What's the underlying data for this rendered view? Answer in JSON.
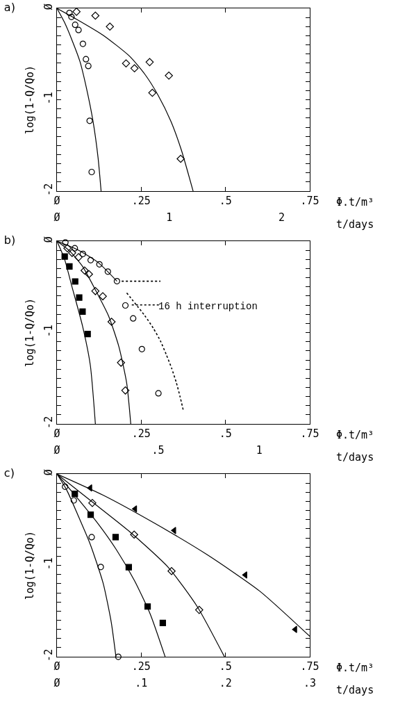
{
  "chart_data": [
    {
      "type": "scatter",
      "title": "a)",
      "xlabel": "Φ.t/m³",
      "x2label": "t/days",
      "ylabel": "log(1-Q/Qo)",
      "xlim": [
        0,
        0.75
      ],
      "xticks": [
        {
          "value": 0,
          "label": "Ø"
        },
        {
          "value": 0.25,
          "label": ".25"
        },
        {
          "value": 0.5,
          "label": ".5"
        },
        {
          "value": 0.75,
          "label": ".75"
        }
      ],
      "x2lim": [
        0,
        2.25
      ],
      "x2ticks": [
        {
          "value": 0,
          "label": "Ø"
        },
        {
          "value": 1,
          "label": "1"
        },
        {
          "value": 2,
          "label": "2"
        }
      ],
      "ylim": [
        -2,
        0
      ],
      "yticks": [
        {
          "value": 0,
          "label": "Ø"
        },
        {
          "value": -0.1,
          "label": null
        },
        {
          "value": -0.2,
          "label": null
        },
        {
          "value": -0.3,
          "label": null
        },
        {
          "value": -0.4,
          "label": null
        },
        {
          "value": -0.5,
          "label": null
        },
        {
          "value": -0.6,
          "label": null
        },
        {
          "value": -0.7,
          "label": null
        },
        {
          "value": -0.8,
          "label": null
        },
        {
          "value": -0.9,
          "label": null
        },
        {
          "value": -1,
          "label": "-1"
        },
        {
          "value": -1.1,
          "label": null
        },
        {
          "value": -1.2,
          "label": null
        },
        {
          "value": -1.3,
          "label": null
        },
        {
          "value": -1.4,
          "label": null
        },
        {
          "value": -1.5,
          "label": null
        },
        {
          "value": -1.6,
          "label": null
        },
        {
          "value": -1.7,
          "label": null
        },
        {
          "value": -1.8,
          "label": null
        },
        {
          "value": -1.9,
          "label": null
        },
        {
          "value": -2,
          "label": "-2"
        }
      ],
      "series": [
        {
          "type": "scatter",
          "marker": "circle",
          "color": "#000000",
          "x": [
            0.037,
            0.043,
            0.054,
            0.064,
            0.077,
            0.086,
            0.093,
            0.097,
            0.103
          ],
          "values": [
            -0.05,
            -0.094,
            -0.18,
            -0.237,
            -0.388,
            -0.556,
            -0.63,
            -1.23,
            -1.79
          ]
        },
        {
          "type": "scatter",
          "marker": "diamond",
          "color": "#000000",
          "x": [
            0.058,
            0.114,
            0.157,
            0.205,
            0.275,
            0.23,
            0.332,
            0.283,
            0.367
          ],
          "values": [
            -0.037,
            -0.08,
            -0.2,
            -0.602,
            -0.588,
            -0.656,
            -0.736,
            -0.924,
            -1.646
          ]
        },
        {
          "type": "line",
          "line_style": "solid",
          "color": "#000000",
          "x": [
            0,
            0.022,
            0.045,
            0.068,
            0.087,
            0.107,
            0.122,
            0.131
          ],
          "values": [
            0,
            -0.151,
            -0.351,
            -0.579,
            -0.864,
            -1.235,
            -1.635,
            -2
          ]
        },
        {
          "type": "line",
          "line_style": "solid",
          "color": "#000000",
          "x": [
            0,
            0.06,
            0.137,
            0.215,
            0.261,
            0.3,
            0.338,
            0.369,
            0.404
          ],
          "values": [
            0,
            -0.123,
            -0.294,
            -0.522,
            -0.722,
            -0.95,
            -1.235,
            -1.549,
            -2
          ]
        }
      ]
    },
    {
      "type": "scatter",
      "title": "b)",
      "xlabel": "Φ.t/m³",
      "x2label": "t/days",
      "ylabel": "log(1-Q/Qo)",
      "xlim": [
        0,
        0.75
      ],
      "xticks": [
        {
          "value": 0,
          "label": "Ø"
        },
        {
          "value": 0.25,
          "label": ".25"
        },
        {
          "value": 0.5,
          "label": ".5"
        },
        {
          "value": 0.75,
          "label": ".75"
        }
      ],
      "x2lim": [
        0,
        1.25
      ],
      "x2ticks": [
        {
          "value": 0,
          "label": "Ø"
        },
        {
          "value": 0.5,
          "label": ".5"
        },
        {
          "value": 1,
          "label": "1"
        }
      ],
      "ylim": [
        -2,
        0
      ],
      "yticks": [
        {
          "value": 0,
          "label": "Ø"
        },
        {
          "value": -0.1,
          "label": null
        },
        {
          "value": -0.2,
          "label": null
        },
        {
          "value": -0.3,
          "label": null
        },
        {
          "value": -0.4,
          "label": null
        },
        {
          "value": -0.5,
          "label": null
        },
        {
          "value": -0.6,
          "label": null
        },
        {
          "value": -0.7,
          "label": null
        },
        {
          "value": -0.8,
          "label": null
        },
        {
          "value": -0.9,
          "label": null
        },
        {
          "value": -1,
          "label": "-1"
        },
        {
          "value": -1.1,
          "label": null
        },
        {
          "value": -1.2,
          "label": null
        },
        {
          "value": -1.3,
          "label": null
        },
        {
          "value": -1.4,
          "label": null
        },
        {
          "value": -1.5,
          "label": null
        },
        {
          "value": -1.6,
          "label": null
        },
        {
          "value": -1.7,
          "label": null
        },
        {
          "value": -1.8,
          "label": null
        },
        {
          "value": -1.9,
          "label": null
        },
        {
          "value": -2,
          "label": "-2"
        }
      ],
      "annotations": [
        "16 h interruption"
      ],
      "series": [
        {
          "type": "scatter",
          "marker": "circle",
          "color": "#000000",
          "x": [
            0.025,
            0.053,
            0.077,
            0.1,
            0.126,
            0.151,
            0.178,
            0.203,
            0.226,
            0.252,
            0.301
          ],
          "values": [
            -0.014,
            -0.077,
            -0.139,
            -0.208,
            -0.253,
            -0.333,
            -0.438,
            -0.703,
            -0.845,
            -1.181,
            -1.664
          ]
        },
        {
          "type": "scatter",
          "marker": "diamond",
          "color": "#000000",
          "x": [
            0.031,
            0.045,
            0.064,
            0.082,
            0.095,
            0.114,
            0.136,
            0.162,
            0.19,
            0.203
          ],
          "values": [
            -0.077,
            -0.128,
            -0.176,
            -0.321,
            -0.361,
            -0.546,
            -0.603,
            -0.882,
            -1.329,
            -1.633
          ]
        },
        {
          "type": "scatter",
          "marker": "square",
          "color": "#000000",
          "x": [
            0.023,
            0.037,
            0.054,
            0.066,
            0.076,
            0.091
          ],
          "values": [
            -0.168,
            -0.276,
            -0.441,
            -0.617,
            -0.771,
            -1.015
          ]
        },
        {
          "type": "line",
          "line_style": "solid",
          "color": "#000000",
          "x": [
            0,
            0.06,
            0.122,
            0.178
          ],
          "values": [
            0,
            -0.091,
            -0.233,
            -0.438
          ]
        },
        {
          "type": "line",
          "line_style": "solid",
          "color": "#000000",
          "x": [
            0,
            0.037,
            0.076,
            0.114,
            0.153,
            0.184,
            0.207,
            0.219
          ],
          "values": [
            0,
            -0.105,
            -0.276,
            -0.532,
            -0.817,
            -1.158,
            -1.556,
            -2
          ]
        },
        {
          "type": "line",
          "line_style": "solid",
          "color": "#000000",
          "x": [
            0,
            0.022,
            0.045,
            0.076,
            0.099,
            0.114
          ],
          "values": [
            0,
            -0.191,
            -0.504,
            -0.93,
            -1.357,
            -2
          ]
        },
        {
          "type": "line",
          "line_style": "dotted",
          "color": "#000000",
          "x": [
            0.207,
            0.261,
            0.286,
            0.307,
            0.324,
            0.34,
            0.354,
            0.365,
            0.375
          ],
          "values": [
            -0.566,
            -0.817,
            -0.953,
            -1.092,
            -1.238,
            -1.388,
            -1.545,
            -1.698,
            -1.852
          ]
        },
        {
          "type": "line",
          "line_style": "dotted",
          "color": "#000000",
          "x": [
            0.192,
            0.307
          ],
          "values": [
            -0.438,
            -0.438
          ]
        },
        {
          "type": "line",
          "line_style": "dotted",
          "color": "#000000",
          "x": [
            0.222,
            0.307
          ],
          "values": [
            -0.697,
            -0.697
          ]
        }
      ]
    },
    {
      "type": "scatter",
      "title": "c)",
      "xlabel": "Φ.t/m³",
      "x2label": "t/days",
      "ylabel": "log(1-Q/Qo)",
      "xlim": [
        0,
        0.75
      ],
      "xticks": [
        {
          "value": 0,
          "label": "Ø"
        },
        {
          "value": 0.25,
          "label": ".25"
        },
        {
          "value": 0.5,
          "label": ".5"
        },
        {
          "value": 0.75,
          "label": ".75"
        }
      ],
      "x2lim": [
        0,
        0.3
      ],
      "x2ticks": [
        {
          "value": 0,
          "label": "Ø"
        },
        {
          "value": 0.1,
          "label": ".1"
        },
        {
          "value": 0.2,
          "label": ".2"
        },
        {
          "value": 0.3,
          "label": ".3"
        }
      ],
      "ylim": [
        -2,
        0
      ],
      "yticks": [
        {
          "value": 0,
          "label": "Ø"
        },
        {
          "value": -0.1,
          "label": null
        },
        {
          "value": -0.2,
          "label": null
        },
        {
          "value": -0.3,
          "label": null
        },
        {
          "value": -0.4,
          "label": null
        },
        {
          "value": -0.5,
          "label": null
        },
        {
          "value": -0.6,
          "label": null
        },
        {
          "value": -0.7,
          "label": null
        },
        {
          "value": -0.8,
          "label": null
        },
        {
          "value": -0.9,
          "label": null
        },
        {
          "value": -1,
          "label": "-1"
        },
        {
          "value": -1.1,
          "label": null
        },
        {
          "value": -1.2,
          "label": null
        },
        {
          "value": -1.3,
          "label": null
        },
        {
          "value": -1.4,
          "label": null
        },
        {
          "value": -1.5,
          "label": null
        },
        {
          "value": -1.6,
          "label": null
        },
        {
          "value": -1.7,
          "label": null
        },
        {
          "value": -1.8,
          "label": null
        },
        {
          "value": -1.9,
          "label": null
        },
        {
          "value": -2,
          "label": "-2"
        }
      ],
      "series": [
        {
          "type": "scatter",
          "marker": "circle",
          "color": "#000000",
          "x": [
            0.024,
            0.05,
            0.103,
            0.13,
            0.182
          ],
          "values": [
            -0.139,
            -0.289,
            -0.691,
            -1.017,
            -2
          ]
        },
        {
          "type": "scatter",
          "marker": "square",
          "color": "#000000",
          "x": [
            0.053,
            0.1,
            0.174,
            0.213,
            0.269,
            0.314
          ],
          "values": [
            -0.218,
            -0.445,
            -0.691,
            -1.02,
            -1.45,
            -1.629
          ]
        },
        {
          "type": "scatter",
          "marker": "diamond",
          "color": "#000000",
          "x": [
            0.105,
            0.229,
            0.34,
            0.422
          ],
          "values": [
            -0.317,
            -0.663,
            -1.062,
            -1.487
          ]
        },
        {
          "type": "scatter",
          "marker": "triangle",
          "color": "#000000",
          "x": [
            0.099,
            0.232,
            0.348,
            0.559,
            0.707
          ],
          "values": [
            -0.153,
            -0.382,
            -0.618,
            -1.105,
            -1.7
          ]
        },
        {
          "type": "line",
          "line_style": "solid",
          "color": "#000000",
          "x": [
            0,
            0.029,
            0.06,
            0.099,
            0.137,
            0.161,
            0.175
          ],
          "values": [
            0,
            -0.176,
            -0.431,
            -0.771,
            -1.195,
            -1.62,
            -2
          ]
        },
        {
          "type": "line",
          "line_style": "solid",
          "color": "#000000",
          "x": [
            0,
            0.06,
            0.122,
            0.176,
            0.23,
            0.277,
            0.321
          ],
          "values": [
            0,
            -0.261,
            -0.544,
            -0.827,
            -1.167,
            -1.535,
            -2
          ]
        },
        {
          "type": "line",
          "line_style": "solid",
          "color": "#000000",
          "x": [
            0,
            0.099,
            0.215,
            0.331,
            0.416,
            0.497
          ],
          "values": [
            0,
            -0.289,
            -0.629,
            -1.025,
            -1.45,
            -2
          ]
        },
        {
          "type": "line",
          "line_style": "solid",
          "color": "#000000",
          "x": [
            0,
            0.137,
            0.292,
            0.446,
            0.601,
            0.75
          ],
          "values": [
            0,
            -0.232,
            -0.544,
            -0.884,
            -1.28,
            -1.776
          ]
        }
      ]
    }
  ]
}
